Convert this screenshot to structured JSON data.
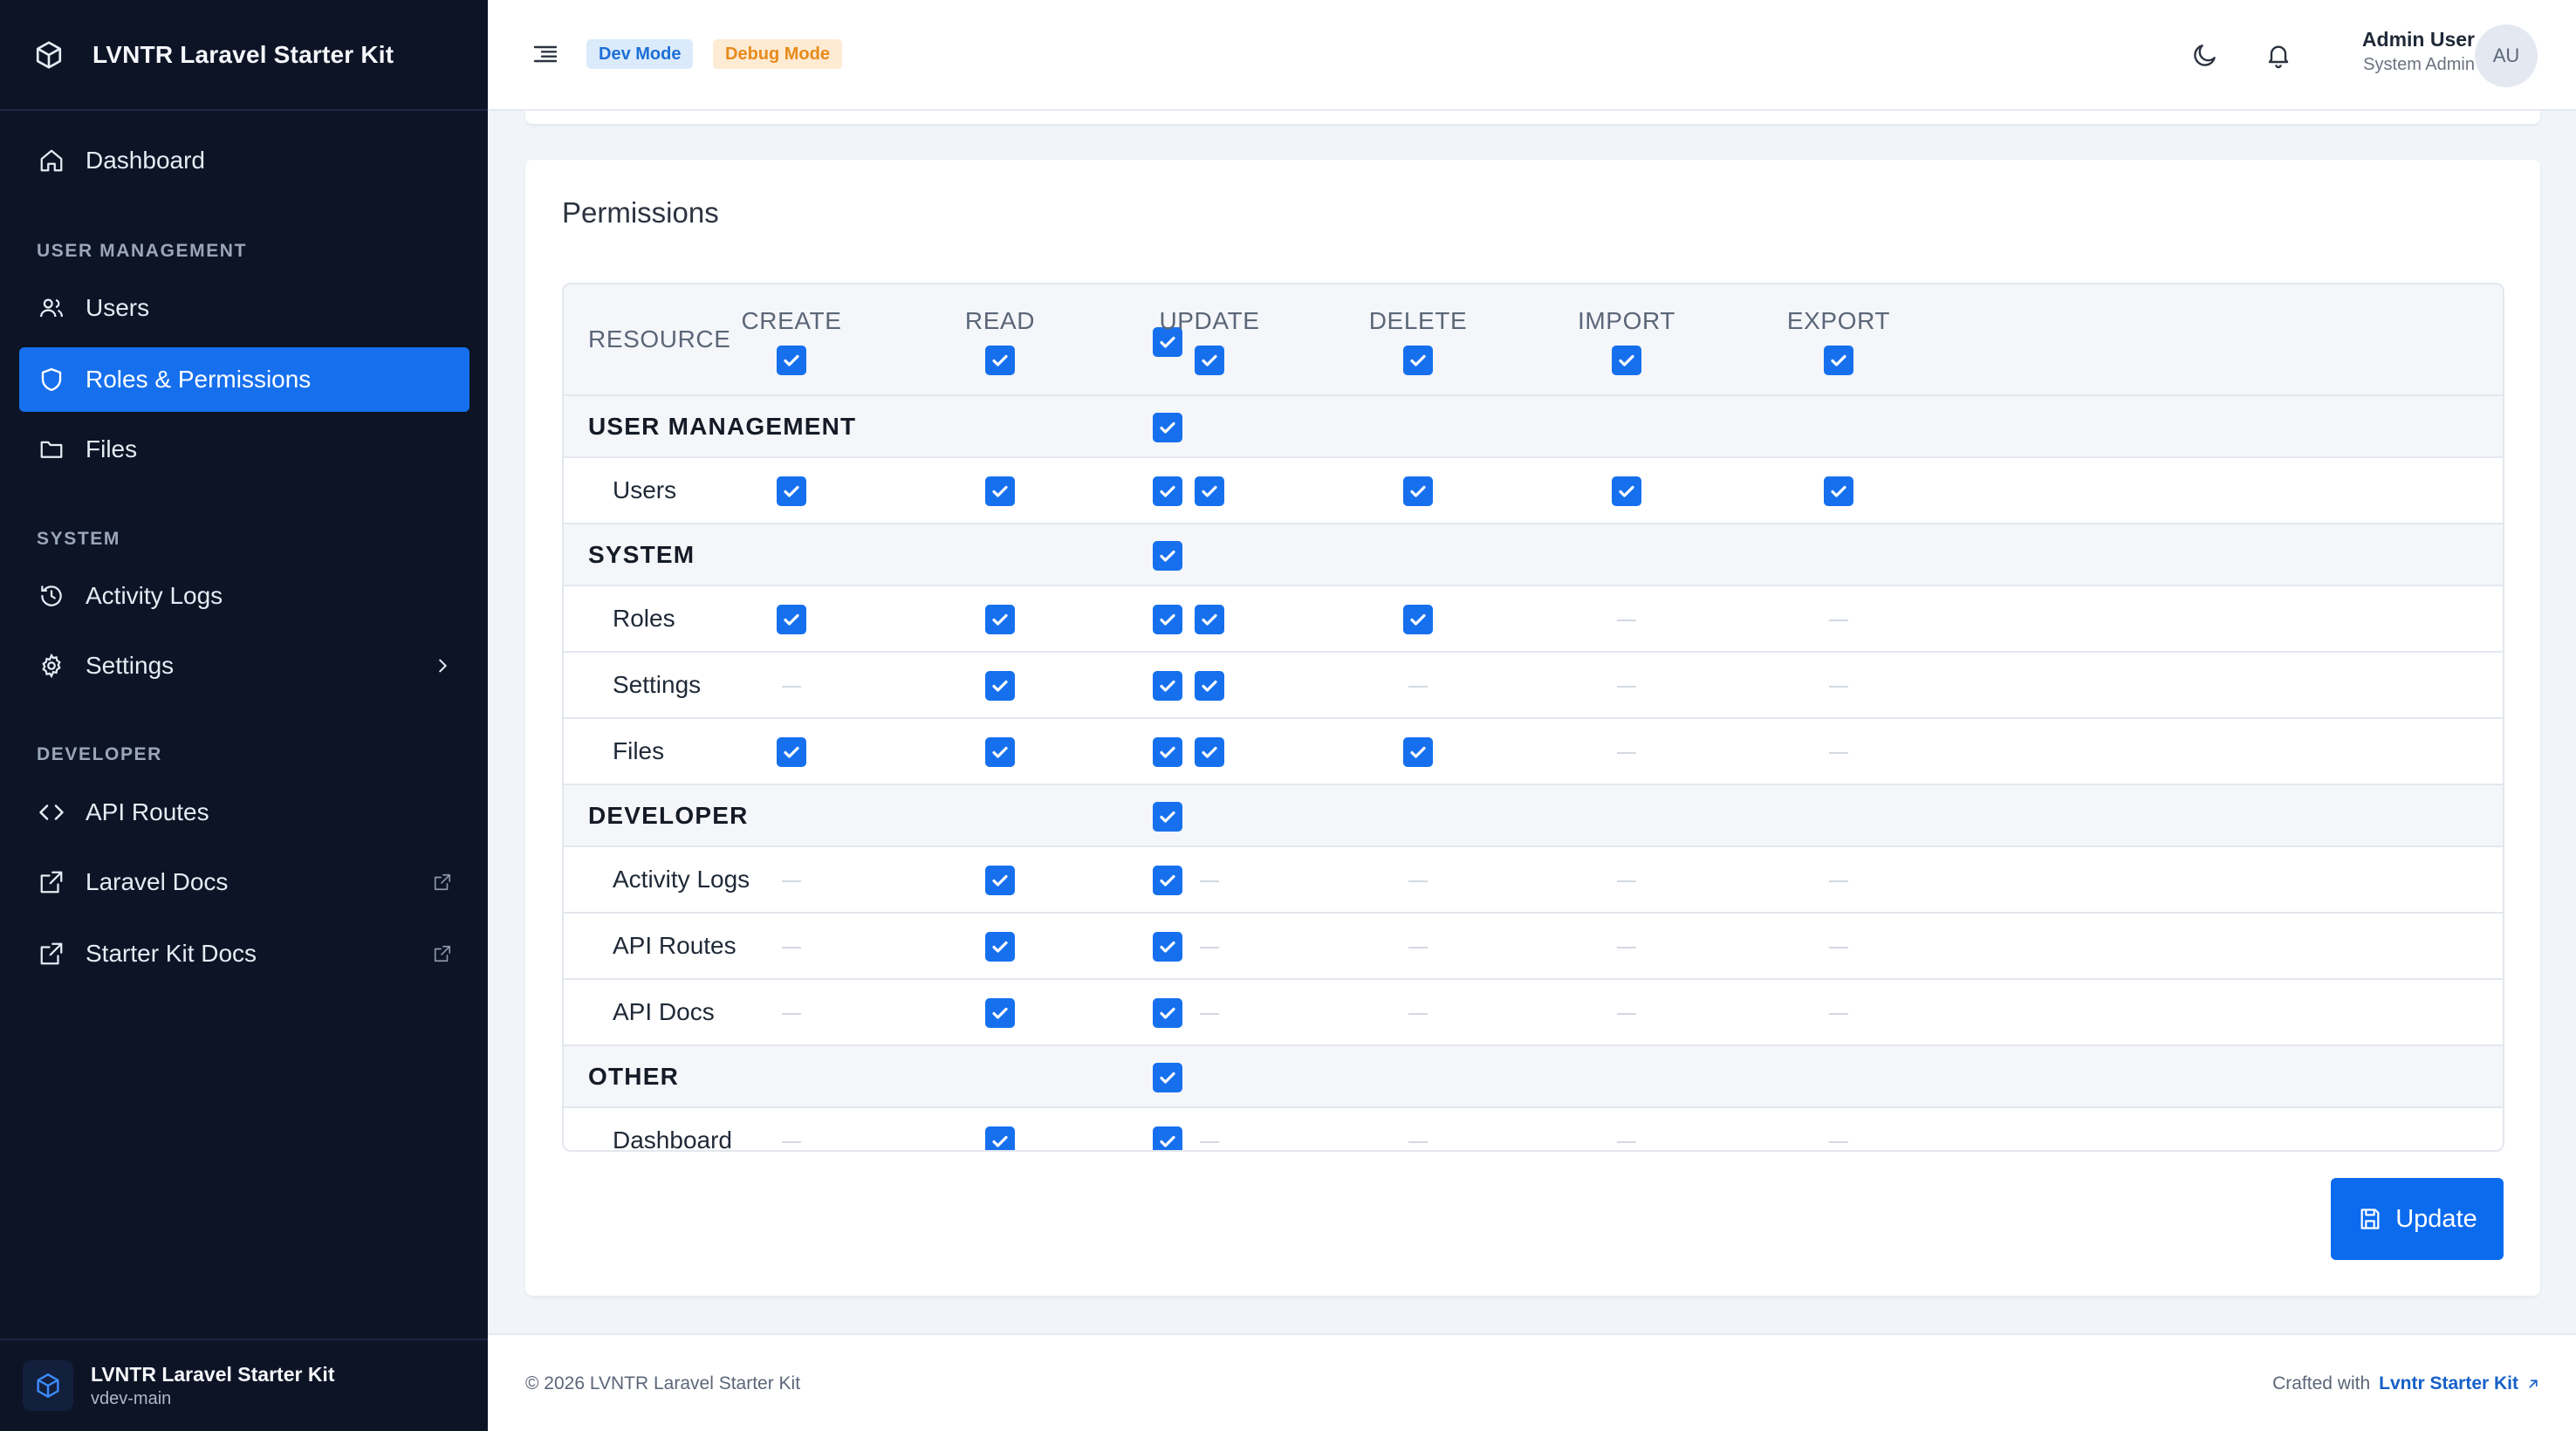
{
  "sidebar": {
    "brand": "LVNTR Laravel Starter Kit",
    "brand_icon": "cube-icon",
    "dashboard": "Dashboard",
    "sections": [
      {
        "title": "USER MANAGEMENT",
        "items": [
          {
            "label": "Users",
            "icon": "users-icon"
          },
          {
            "label": "Roles & Permissions",
            "icon": "shield-icon",
            "active": true
          },
          {
            "label": "Files",
            "icon": "folder-icon"
          }
        ]
      },
      {
        "title": "SYSTEM",
        "items": [
          {
            "label": "Activity Logs",
            "icon": "history-icon"
          },
          {
            "label": "Settings",
            "icon": "gear-icon"
          }
        ]
      },
      {
        "title": "DEVELOPER",
        "items": [
          {
            "label": "API Routes",
            "icon": "code-icon"
          },
          {
            "label": "Laravel Docs",
            "icon": "external-link-icon"
          },
          {
            "label": "Starter Kit Docs",
            "icon": "external-link-icon"
          }
        ]
      }
    ],
    "footer": {
      "name": "LVNTR Laravel Starter Kit",
      "version": "vdev-main"
    }
  },
  "header": {
    "badges": [
      "Dev Mode",
      "Debug Mode"
    ],
    "user_name": "Admin User",
    "user_role": "System Admin",
    "avatar_initials": "AU"
  },
  "card": {
    "title": "Permissions",
    "columns": [
      "RESOURCE",
      "CREATE",
      "READ",
      "UPDATE",
      "DELETE",
      "IMPORT",
      "EXPORT"
    ],
    "rows": [
      {
        "type": "group",
        "label": "USER MANAGEMENT"
      },
      {
        "type": "item",
        "label": "Users",
        "perms": [
          true,
          true,
          true,
          true,
          true,
          true
        ]
      },
      {
        "type": "group",
        "label": "SYSTEM"
      },
      {
        "type": "item",
        "label": "Roles",
        "perms": [
          true,
          true,
          true,
          true,
          null,
          null
        ]
      },
      {
        "type": "item",
        "label": "Settings",
        "perms": [
          null,
          true,
          true,
          null,
          null,
          null
        ]
      },
      {
        "type": "item",
        "label": "Files",
        "perms": [
          true,
          true,
          true,
          true,
          null,
          null
        ]
      },
      {
        "type": "group",
        "label": "DEVELOPER"
      },
      {
        "type": "item",
        "label": "Activity Logs",
        "perms": [
          null,
          true,
          null,
          null,
          null,
          null
        ]
      },
      {
        "type": "item",
        "label": "API Routes",
        "perms": [
          null,
          true,
          null,
          null,
          null,
          null
        ]
      },
      {
        "type": "item",
        "label": "API Docs",
        "perms": [
          null,
          true,
          null,
          null,
          null,
          null
        ]
      },
      {
        "type": "group",
        "label": "OTHER"
      },
      {
        "type": "item",
        "label": "Dashboard",
        "perms": [
          null,
          true,
          null,
          null,
          null,
          null
        ]
      }
    ],
    "update_button": "Update"
  },
  "footer": {
    "copyright": "© 2026 LVNTR Laravel Starter Kit",
    "crafted": "Crafted with",
    "link": "Lvntr Starter Kit"
  },
  "colors": {
    "accent": "#1670ee",
    "sidebar_bg": "#0c1426",
    "dev_badge": "#1d6fd6",
    "debug_badge": "#e88a1a"
  }
}
